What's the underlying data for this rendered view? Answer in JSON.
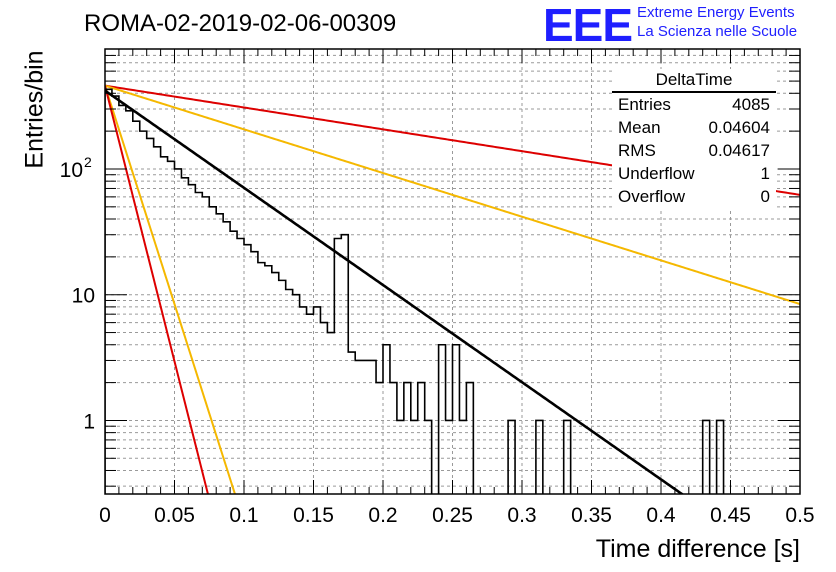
{
  "header": {
    "run_title": "ROMA-02-2019-02-06-00309",
    "logo_letters": "EEE",
    "logo_line1": "Extreme Energy Events",
    "logo_line2": "La Scienza nelle Scuole"
  },
  "stats_box": {
    "title": "DeltaTime",
    "rows": [
      {
        "label": "Entries",
        "value": "4085"
      },
      {
        "label": "Mean",
        "value": "0.04604"
      },
      {
        "label": "RMS",
        "value": "0.04617"
      },
      {
        "label": "Underflow",
        "value": "1"
      },
      {
        "label": "Overflow",
        "value": "0"
      }
    ]
  },
  "colors": {
    "histogram": "#000000",
    "fit": "#000000",
    "curve_red": "#dd0000",
    "curve_yellow": "#f5b800",
    "logo": "#1f1fff"
  },
  "chart_data": {
    "type": "line",
    "xlabel": "Time difference [s]",
    "ylabel": "Entries/bin",
    "xlim": [
      0,
      0.5
    ],
    "ylim": [
      0.26,
      900
    ],
    "yscale": "log",
    "grid": true,
    "x_ticks": [
      "0",
      "0.05",
      "0.1",
      "0.15",
      "0.2",
      "0.25",
      "0.3",
      "0.35",
      "0.4",
      "0.45",
      "0.5"
    ],
    "y_ticks": [
      {
        "value": 1,
        "label": "1"
      },
      {
        "value": 10,
        "label": "10"
      },
      {
        "value": 100,
        "label": "10",
        "exponent": "2"
      }
    ],
    "histogram": {
      "bin_width": 0.005,
      "counts": [
        430,
        380,
        320,
        290,
        240,
        200,
        175,
        150,
        125,
        115,
        100,
        85,
        75,
        65,
        60,
        50,
        44,
        38,
        32,
        28,
        25,
        22,
        18,
        17,
        15,
        13,
        11,
        10,
        8,
        7,
        8,
        6,
        5,
        4.5,
        4,
        3.5,
        3,
        3,
        3,
        2,
        4,
        2,
        1,
        2,
        1,
        2,
        4,
        0,
        4,
        1,
        4,
        1,
        2,
        0,
        0,
        0,
        0,
        0,
        0,
        0,
        0,
        0,
        0,
        0,
        0,
        0,
        0,
        0,
        0,
        0,
        0,
        0,
        0,
        0,
        0,
        0,
        0,
        0,
        0,
        0,
        0,
        0,
        0,
        0,
        0,
        0,
        0,
        0,
        0,
        0,
        0,
        0,
        0,
        0,
        0,
        0,
        0,
        0,
        0,
        0
      ],
      "extra_bins": [
        {
          "x": 0.165,
          "count": 28
        },
        {
          "x": 0.17,
          "count": 30
        },
        {
          "x": 0.23,
          "count": 1
        },
        {
          "x": 0.29,
          "count": 1
        },
        {
          "x": 0.31,
          "count": 1
        },
        {
          "x": 0.33,
          "count": 1
        },
        {
          "x": 0.43,
          "count": 1
        },
        {
          "x": 0.44,
          "count": 1
        }
      ]
    },
    "curves": [
      {
        "role": "fit",
        "color": "#000000",
        "amplitude": 420,
        "slope": 17.8
      },
      {
        "role": "red-slow",
        "color": "#dd0000",
        "amplitude": 460,
        "slope": 4.0
      },
      {
        "role": "yellow-slow",
        "color": "#f5b800",
        "amplitude": 460,
        "slope": 8.0
      },
      {
        "role": "yellow-fast",
        "color": "#f5b800",
        "amplitude": 460,
        "slope": 80.0
      },
      {
        "role": "red-fast",
        "color": "#dd0000",
        "amplitude": 460,
        "slope": 101.0
      }
    ]
  }
}
